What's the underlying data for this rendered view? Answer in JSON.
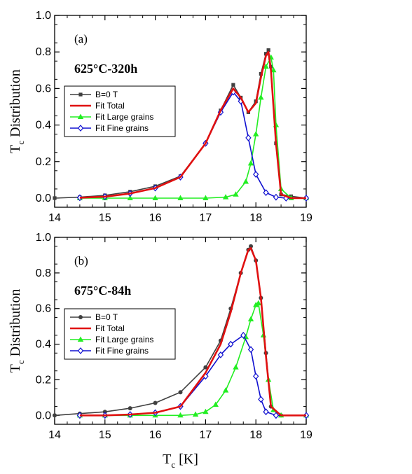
{
  "chart_data": [
    {
      "type": "line",
      "panel_label": "(a)",
      "annotation": "625°C-320h",
      "xlabel": "T",
      "xlabel_sub": "c",
      "xlabel_suffix": " [K]",
      "ylabel": "T",
      "ylabel_sub": "c",
      "ylabel_suffix": " Distribution",
      "xlim": [
        14,
        19
      ],
      "ylim": [
        -0.05,
        1.0
      ],
      "xticks": [
        "14",
        "15",
        "16",
        "17",
        "18",
        "19"
      ],
      "yticks": [
        "0.0",
        "0.2",
        "0.4",
        "0.6",
        "0.8",
        "1.0"
      ],
      "legend": [
        "B=0 T",
        "Fit Total",
        "Fit Large grains",
        "Fit Fine grains"
      ],
      "series": [
        {
          "name": "B=0 T",
          "color": "#404040",
          "marker": "square",
          "x": [
            14.0,
            14.5,
            15.0,
            15.5,
            16.0,
            16.5,
            17.0,
            17.3,
            17.55,
            17.7,
            17.85,
            18.0,
            18.1,
            18.2,
            18.25,
            18.3,
            18.4,
            18.5,
            18.7,
            19.0
          ],
          "y": [
            0.0,
            0.005,
            0.015,
            0.035,
            0.065,
            0.12,
            0.3,
            0.48,
            0.62,
            0.55,
            0.47,
            0.53,
            0.68,
            0.79,
            0.81,
            0.72,
            0.3,
            0.02,
            0.01,
            0.0
          ]
        },
        {
          "name": "Fit Total",
          "color": "#e01010",
          "marker": "none",
          "x": [
            14.5,
            15.0,
            15.5,
            16.0,
            16.5,
            17.0,
            17.3,
            17.55,
            17.7,
            17.85,
            18.0,
            18.1,
            18.2,
            18.25,
            18.3,
            18.4,
            18.5,
            18.7,
            19.0
          ],
          "y": [
            0.002,
            0.008,
            0.025,
            0.055,
            0.115,
            0.3,
            0.48,
            0.6,
            0.55,
            0.47,
            0.52,
            0.66,
            0.78,
            0.8,
            0.7,
            0.3,
            0.02,
            0.0,
            0.0
          ]
        },
        {
          "name": "Fit Large grains",
          "color": "#22ee22",
          "marker": "triangle",
          "x": [
            14.5,
            15.0,
            15.5,
            16.0,
            16.5,
            17.0,
            17.4,
            17.6,
            17.8,
            17.9,
            18.0,
            18.1,
            18.2,
            18.3,
            18.35,
            18.4,
            18.5,
            18.7,
            19.0
          ],
          "y": [
            0.0,
            0.0,
            0.0,
            0.0,
            0.0,
            0.0,
            0.005,
            0.02,
            0.09,
            0.19,
            0.35,
            0.55,
            0.72,
            0.77,
            0.7,
            0.4,
            0.05,
            0.0,
            0.0
          ]
        },
        {
          "name": "Fit Fine grains",
          "color": "#1010d0",
          "marker": "diamond",
          "x": [
            14.5,
            15.0,
            15.5,
            16.0,
            16.5,
            17.0,
            17.3,
            17.55,
            17.7,
            17.85,
            18.0,
            18.2,
            18.4,
            18.6,
            19.0
          ],
          "y": [
            0.002,
            0.008,
            0.025,
            0.055,
            0.115,
            0.3,
            0.47,
            0.58,
            0.53,
            0.33,
            0.13,
            0.03,
            0.005,
            0.0,
            0.0
          ]
        }
      ]
    },
    {
      "type": "line",
      "panel_label": "(b)",
      "annotation": "675°C-84h",
      "xlabel": "T",
      "xlabel_sub": "c",
      "xlabel_suffix": " [K]",
      "ylabel": "T",
      "ylabel_sub": "c",
      "ylabel_suffix": " Distribution",
      "xlim": [
        14,
        19
      ],
      "ylim": [
        -0.05,
        1.0
      ],
      "xticks": [
        "14",
        "15",
        "16",
        "17",
        "18",
        "19"
      ],
      "yticks": [
        "0.0",
        "0.2",
        "0.4",
        "0.6",
        "0.8",
        "1.0"
      ],
      "legend": [
        "B=0 T",
        "Fit Total",
        "Fit Large grains",
        "Fit Fine grains"
      ],
      "series": [
        {
          "name": "B=0 T",
          "color": "#404040",
          "marker": "circle",
          "x": [
            14.0,
            14.5,
            15.0,
            15.5,
            16.0,
            16.5,
            17.0,
            17.3,
            17.5,
            17.7,
            17.85,
            17.9,
            18.0,
            18.1,
            18.2,
            18.3,
            18.5,
            19.0
          ],
          "y": [
            0.0,
            0.01,
            0.02,
            0.04,
            0.07,
            0.13,
            0.27,
            0.42,
            0.6,
            0.8,
            0.93,
            0.95,
            0.87,
            0.66,
            0.35,
            0.05,
            0.0,
            0.0
          ]
        },
        {
          "name": "Fit Total",
          "color": "#e01010",
          "marker": "none",
          "x": [
            14.5,
            15.0,
            15.5,
            16.0,
            16.5,
            17.0,
            17.3,
            17.5,
            17.7,
            17.85,
            17.9,
            18.0,
            18.1,
            18.2,
            18.3,
            18.5,
            19.0
          ],
          "y": [
            0.0,
            0.0,
            0.005,
            0.015,
            0.05,
            0.24,
            0.4,
            0.58,
            0.8,
            0.93,
            0.94,
            0.87,
            0.66,
            0.33,
            0.05,
            0.0,
            0.0
          ]
        },
        {
          "name": "Fit Large grains",
          "color": "#22ee22",
          "marker": "triangle",
          "x": [
            14.5,
            15.0,
            15.5,
            16.0,
            16.5,
            16.8,
            17.0,
            17.2,
            17.4,
            17.6,
            17.8,
            17.9,
            18.0,
            18.05,
            18.15,
            18.25,
            18.35,
            18.5,
            19.0
          ],
          "y": [
            0.0,
            0.0,
            0.0,
            0.0,
            0.0,
            0.005,
            0.02,
            0.06,
            0.14,
            0.27,
            0.44,
            0.54,
            0.62,
            0.63,
            0.45,
            0.2,
            0.03,
            0.0,
            0.0
          ]
        },
        {
          "name": "Fit Fine grains",
          "color": "#1010d0",
          "marker": "diamond",
          "x": [
            14.5,
            15.0,
            15.5,
            16.0,
            16.5,
            17.0,
            17.3,
            17.5,
            17.75,
            17.9,
            18.0,
            18.1,
            18.2,
            18.4,
            19.0
          ],
          "y": [
            0.0,
            0.0,
            0.005,
            0.015,
            0.05,
            0.22,
            0.34,
            0.4,
            0.45,
            0.37,
            0.22,
            0.09,
            0.02,
            0.0,
            0.0
          ]
        }
      ]
    }
  ]
}
